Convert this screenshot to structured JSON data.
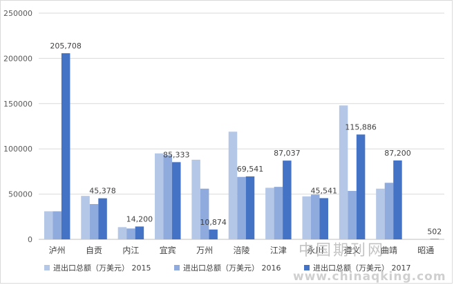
{
  "chart_data": {
    "type": "bar",
    "title": "",
    "xlabel": "",
    "ylabel": "",
    "ylim": [
      0,
      250000
    ],
    "yticks": [
      "0",
      "50000",
      "100000",
      "150000",
      "200000",
      "250000"
    ],
    "categories": [
      "泸州",
      "自贡",
      "内江",
      "宜宾",
      "万州",
      "涪陵",
      "江津",
      "永川",
      "遵义",
      "曲靖",
      "昭通"
    ],
    "series": [
      {
        "name": "进出口总额（万美元） 2015",
        "color": "#b4c7e7",
        "values": [
          31000,
          48000,
          13500,
          95000,
          88000,
          119000,
          57000,
          47500,
          148000,
          56000,
          0
        ]
      },
      {
        "name": "进出口总额（万美元） 2016",
        "color": "#8faadc",
        "values": [
          31000,
          39000,
          12000,
          93000,
          56000,
          69000,
          58000,
          49500,
          53500,
          62500,
          0
        ]
      },
      {
        "name": "进出口总额（万美元） 2017",
        "color": "#4472c4",
        "values": [
          205708,
          45378,
          14200,
          85333,
          10874,
          69541,
          87037,
          45541,
          115886,
          87200,
          502
        ]
      }
    ],
    "data_labels": [
      "205,708",
      "45,378",
      "14,200",
      "85,333",
      "10,874",
      "69,541",
      "87,037",
      "45,541",
      "115,886",
      "87,200",
      "502"
    ],
    "grid": true,
    "legend_position": "bottom"
  },
  "watermark": {
    "line1": "中国期刊网",
    "line2": "www.chinaqking.com"
  }
}
